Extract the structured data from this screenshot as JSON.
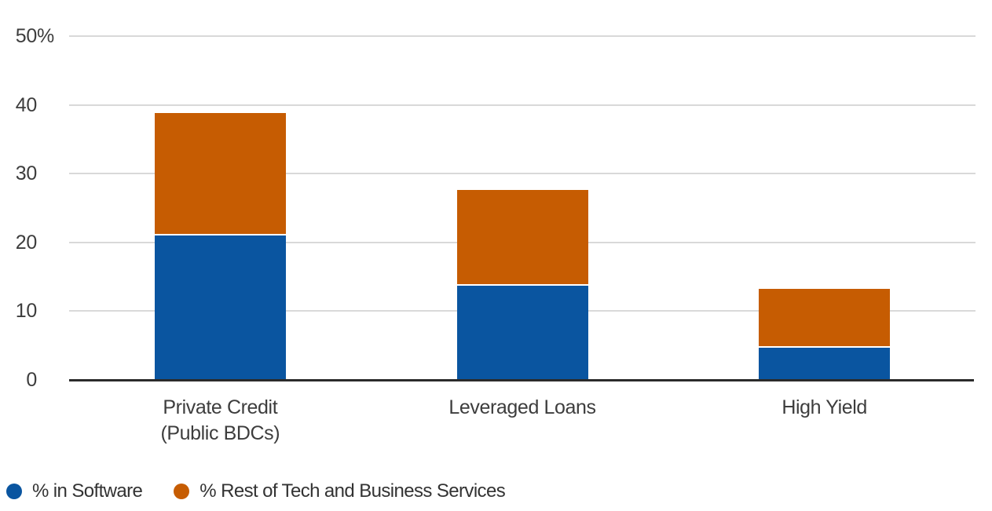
{
  "chart_data": {
    "type": "bar",
    "stacked": true,
    "title": "",
    "xlabel": "",
    "ylabel": "",
    "categories": [
      "Private Credit\n(Public BDCs)",
      "Leveraged Loans",
      "High Yield"
    ],
    "series": [
      {
        "name": "% in Software",
        "color": "#0a55a0",
        "values": [
          21.0,
          13.7,
          4.7
        ]
      },
      {
        "name": "% Rest of Tech and Business Services",
        "color": "#c65c02",
        "values": [
          17.8,
          13.9,
          8.5
        ]
      }
    ],
    "stack_totals": [
      38.8,
      27.6,
      13.2
    ],
    "ylim": [
      0,
      50
    ],
    "yticks": [
      {
        "value": 50,
        "label": "50",
        "suffix": "%"
      },
      {
        "value": 40,
        "label": "40",
        "suffix": ""
      },
      {
        "value": 30,
        "label": "30",
        "suffix": ""
      },
      {
        "value": 20,
        "label": "20",
        "suffix": ""
      },
      {
        "value": 10,
        "label": "10",
        "suffix": ""
      },
      {
        "value": 0,
        "label": "0",
        "suffix": ""
      }
    ],
    "grid": "horizontal",
    "legend_position": "bottom-left"
  },
  "style": {
    "background": "#ffffff",
    "gridline_color": "#d9d9d9",
    "axis_color": "#2b2b2b",
    "segment_divider_color": "#ffffff",
    "tick_text_color": "#3d3d3d",
    "category_text_color": "#3d3d3d",
    "legend_text_color": "#333333"
  }
}
